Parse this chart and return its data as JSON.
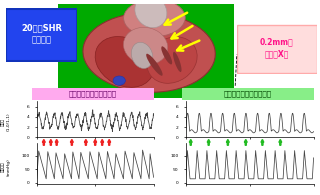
{
  "title_left": "20週齢SHR\n肥大心臓",
  "title_left_bg": "#2244ee",
  "title_left_color": "#ffffff",
  "label_right": "0.2mm径\n放射光X線",
  "label_right_bg": "#ffdddd",
  "label_right_color": "#ff1188",
  "label_irregular": "タンパクの不規則な挙動",
  "label_irregular_bg": "#ffaaee",
  "label_irregular_color": "#660066",
  "label_periodic": "タンパクの周期的な挙動",
  "label_periodic_bg": "#88ee88",
  "label_periodic_color": "#004400",
  "heart_bg": "#00aa00",
  "waveform_color": "#444444",
  "arrow_red": "#ee2222",
  "arrow_green": "#22bb22",
  "yleft_label1": "振幅比\n(1,0/1,1)",
  "yleft_label2": "左心室圧\n(mmHg)",
  "background": "#ffffff",
  "fig_bg": "#f0f0f0"
}
